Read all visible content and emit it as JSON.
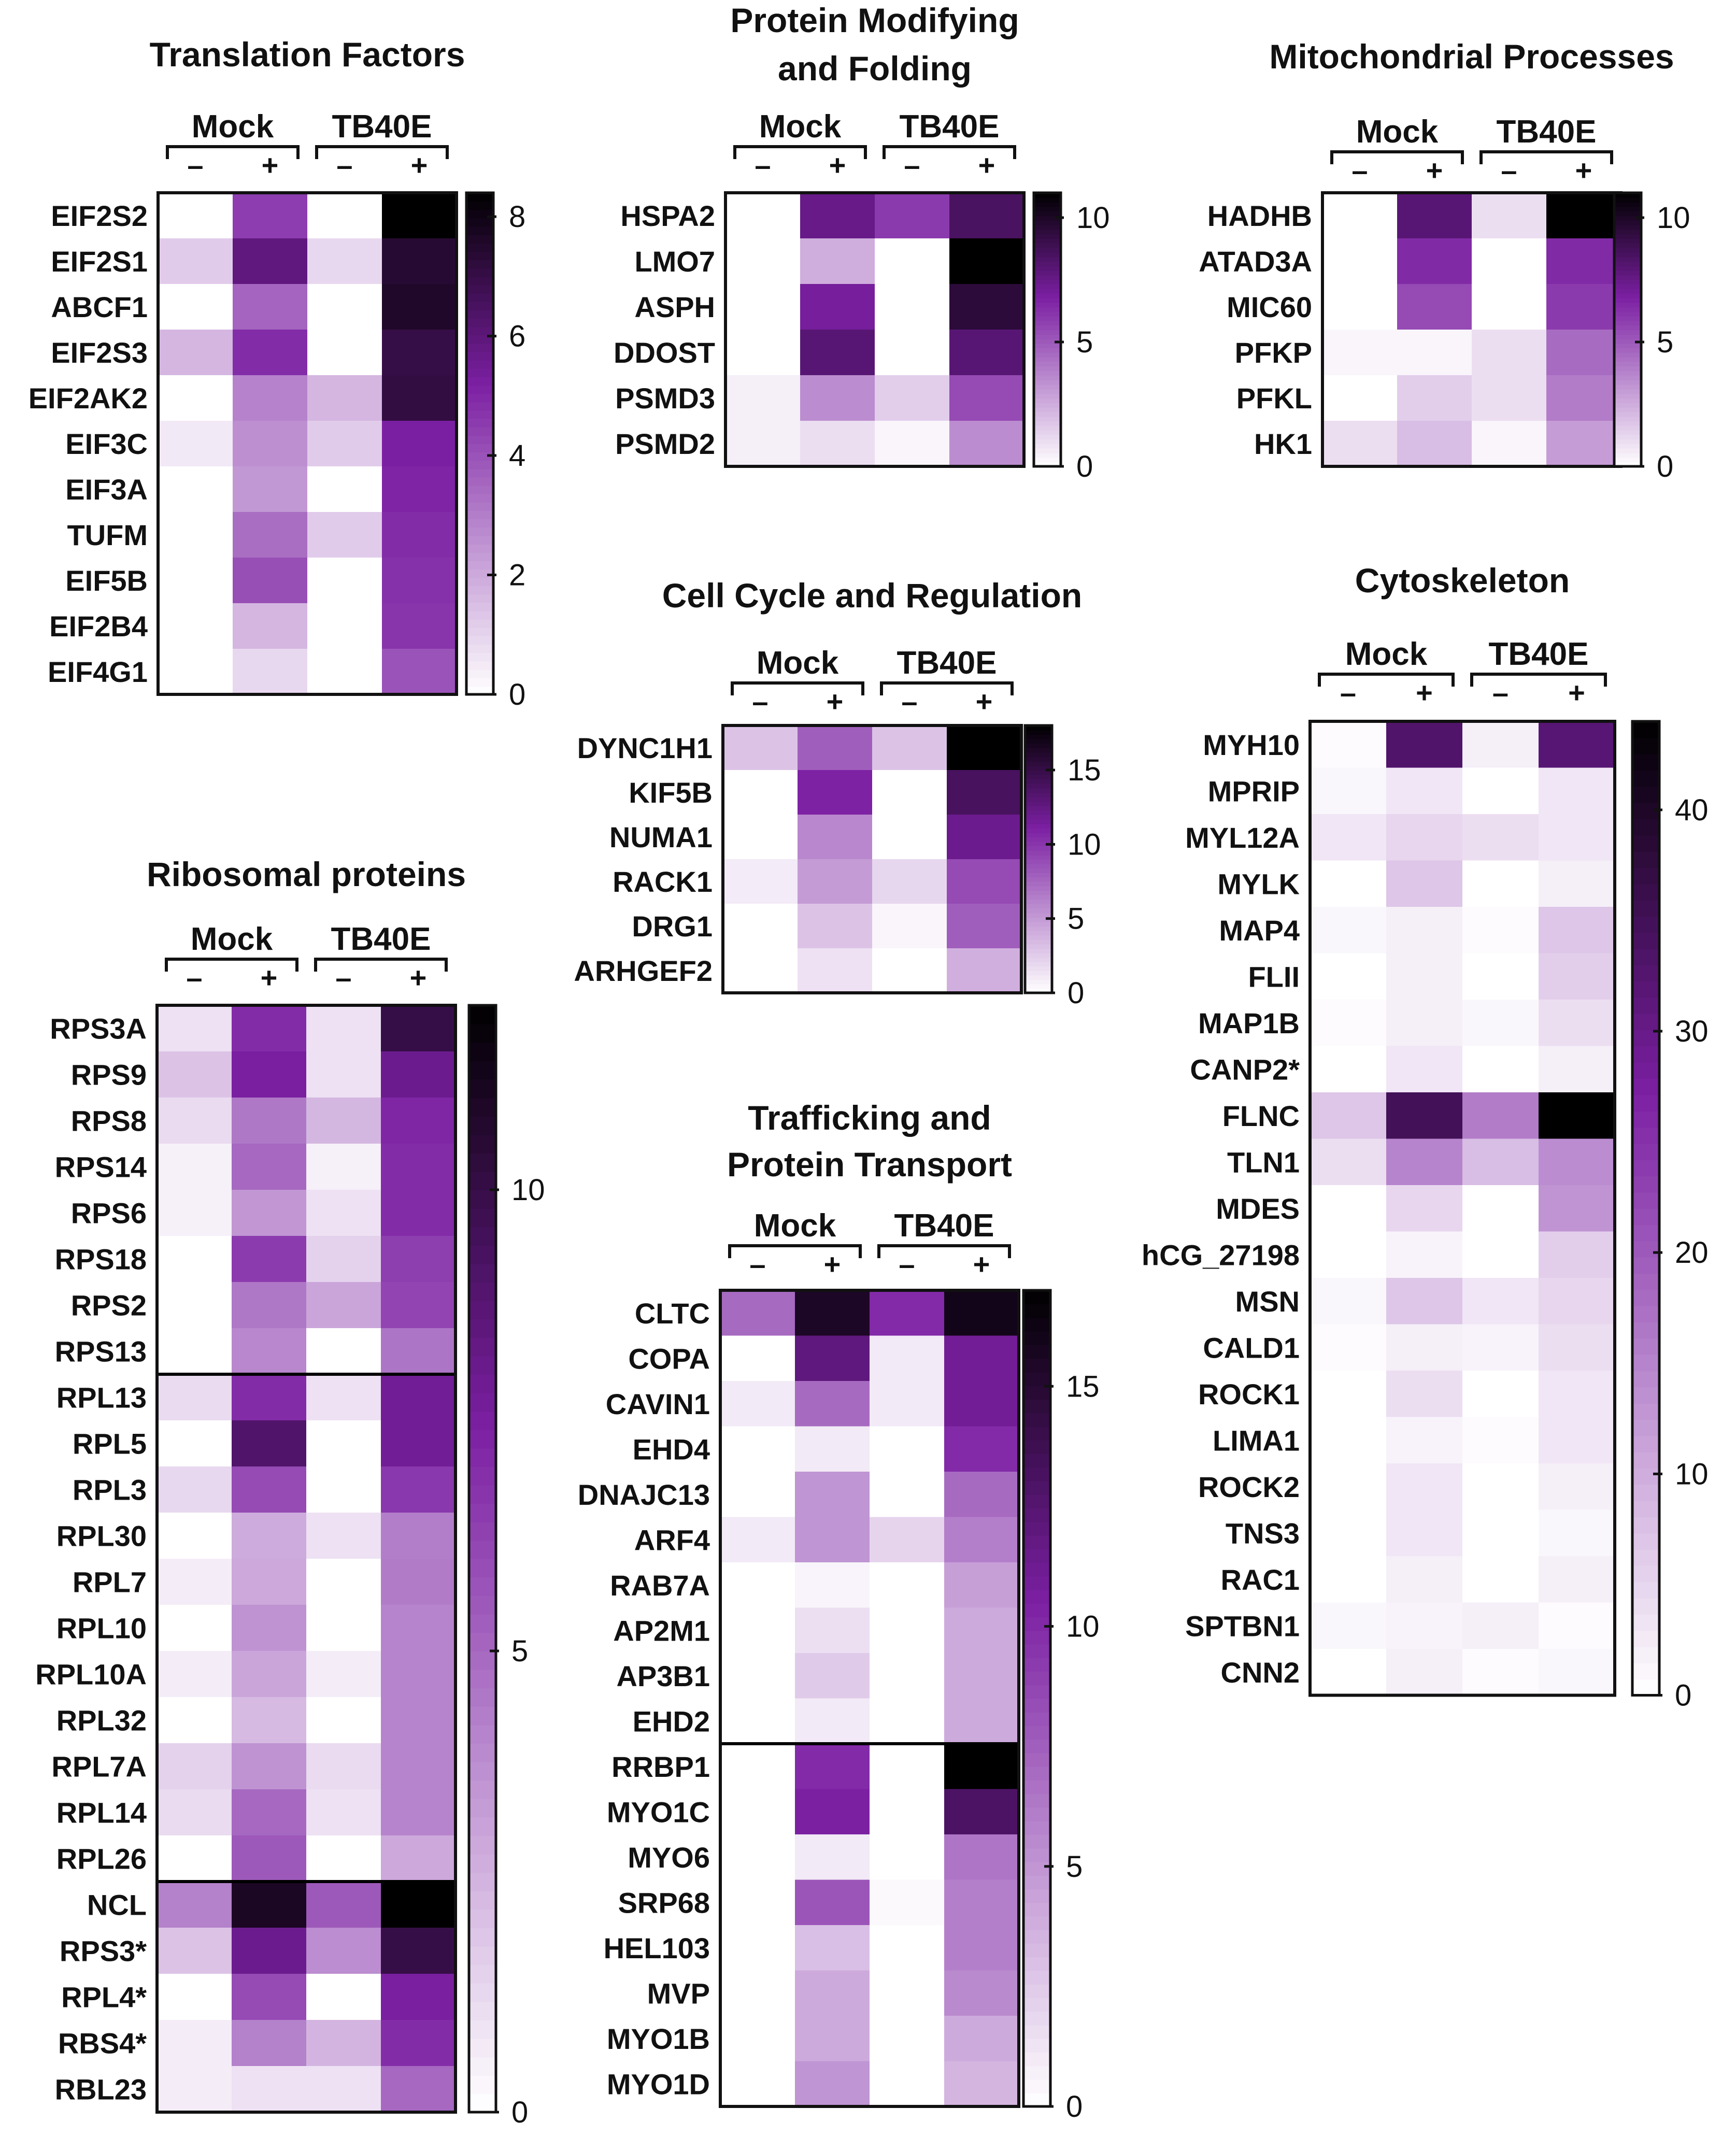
{
  "color_scale": {
    "low": "#ffffff",
    "mid": "#7b1fa2",
    "high": "#000000"
  },
  "group_labels": {
    "mock": "Mock",
    "virus": "TB40E",
    "minus": "–",
    "plus": "+"
  },
  "chart_data": [
    {
      "type": "heatmap",
      "id": "translation",
      "title": [
        "Translation Factors"
      ],
      "columns": [
        "Mock –",
        "Mock +",
        "TB40E –",
        "TB40E +"
      ],
      "rows": [
        "EIF2S2",
        "EIF2S1",
        "ABCF1",
        "EIF2S3",
        "EIF2AK2",
        "EIF3C",
        "EIF3A",
        "TUFM",
        "EIF5B",
        "EIF2B4",
        "EIF4G1"
      ],
      "values": [
        [
          0,
          4.5,
          0,
          8.4
        ],
        [
          1.2,
          5.9,
          0.9,
          7.4
        ],
        [
          0,
          3.6,
          0,
          7.6
        ],
        [
          1.7,
          4.9,
          0,
          7.0
        ],
        [
          0,
          2.9,
          1.7,
          7.1
        ],
        [
          0.5,
          2.6,
          1.2,
          5.2
        ],
        [
          0,
          2.4,
          0,
          5.1
        ],
        [
          0,
          3.4,
          1.2,
          4.9
        ],
        [
          0,
          4.1,
          0,
          4.8
        ],
        [
          0,
          1.7,
          0,
          4.7
        ],
        [
          0,
          0.9,
          0,
          4.0
        ]
      ],
      "colorbar": {
        "min": 0,
        "max": 8.4,
        "ticks": [
          0,
          2,
          4,
          6,
          8
        ]
      },
      "separators": []
    },
    {
      "type": "heatmap",
      "id": "protein-folding",
      "title": [
        "Protein Modifying",
        "and Folding"
      ],
      "columns": [
        "Mock –",
        "Mock +",
        "TB40E –",
        "TB40E +"
      ],
      "rows": [
        "HSPA2",
        "LMO7",
        "ASPH",
        "DDOST",
        "PSMD3",
        "PSMD2"
      ],
      "values": [
        [
          0,
          7.5,
          6.0,
          8.5
        ],
        [
          0,
          2.5,
          0,
          11.0
        ],
        [
          0,
          7.0,
          0,
          9.5
        ],
        [
          0,
          8.0,
          0,
          8.0
        ],
        [
          0.5,
          3.5,
          1.5,
          5.5
        ],
        [
          0.5,
          1.0,
          0.3,
          3.5
        ]
      ],
      "colorbar": {
        "min": 0,
        "max": 11,
        "ticks": [
          0,
          5,
          10
        ]
      },
      "separators": []
    },
    {
      "type": "heatmap",
      "id": "mitochondrial",
      "title": [
        "Mitochondrial Processes"
      ],
      "columns": [
        "Mock –",
        "Mock +",
        "TB40E –",
        "TB40E +"
      ],
      "rows": [
        "HADHB",
        "ATAD3A",
        "MIC60",
        "PFKP",
        "PFKL",
        "HK1"
      ],
      "values": [
        [
          0,
          8.0,
          1.0,
          11.0
        ],
        [
          0,
          6.5,
          0,
          6.5
        ],
        [
          0,
          5.5,
          0,
          6.0
        ],
        [
          0.3,
          0.3,
          1.0,
          4.5
        ],
        [
          0,
          1.5,
          1.0,
          4.0
        ],
        [
          1.0,
          2.0,
          0.3,
          3.0
        ]
      ],
      "colorbar": {
        "min": 0,
        "max": 11,
        "ticks": [
          0,
          5,
          10
        ]
      },
      "separators": []
    },
    {
      "type": "heatmap",
      "id": "cell-cycle",
      "title": [
        "Cell Cycle and Regulation"
      ],
      "columns": [
        "Mock –",
        "Mock +",
        "TB40E –",
        "TB40E +"
      ],
      "rows": [
        "DYNC1H1",
        "KIF5B",
        "NUMA1",
        "RACK1",
        "DRG1",
        "ARHGEF2"
      ],
      "values": [
        [
          3,
          8,
          3,
          18
        ],
        [
          0,
          11,
          0,
          14
        ],
        [
          0,
          6,
          0,
          12
        ],
        [
          1,
          5,
          2,
          9
        ],
        [
          0,
          3,
          0.5,
          8
        ],
        [
          0,
          1.5,
          0,
          4
        ]
      ],
      "colorbar": {
        "min": 0,
        "max": 18,
        "ticks": [
          0,
          5,
          10,
          15
        ]
      },
      "separators": []
    },
    {
      "type": "heatmap",
      "id": "cytoskeleton",
      "title": [
        "Cytoskeleton"
      ],
      "columns": [
        "Mock –",
        "Mock +",
        "TB40E –",
        "TB40E +"
      ],
      "rows": [
        "MYH10",
        "MPRIP",
        "MYL12A",
        "MYLK",
        "MAP4",
        "FLII",
        "MAP1B",
        "CANP2*",
        "FLNC",
        "TLN1",
        "MDES",
        "hCG_27198",
        "MSN",
        "CALD1",
        "ROCK1",
        "LIMA1",
        "ROCK2",
        "TNS3",
        "RAC1",
        "SPTBN1",
        "CNN2"
      ],
      "values": [
        [
          0.5,
          33,
          2,
          32
        ],
        [
          1,
          3,
          0,
          3
        ],
        [
          3,
          5,
          4,
          3
        ],
        [
          0,
          7,
          0,
          2
        ],
        [
          1,
          2,
          0.5,
          7
        ],
        [
          0,
          2,
          0,
          6
        ],
        [
          0.5,
          2,
          1,
          4
        ],
        [
          0,
          3,
          0,
          2
        ],
        [
          7,
          35,
          16,
          44
        ],
        [
          4,
          15,
          8,
          14
        ],
        [
          0,
          5,
          0,
          13
        ],
        [
          0,
          1.5,
          0,
          6
        ],
        [
          1,
          7,
          3,
          5
        ],
        [
          0.5,
          2,
          1.5,
          4
        ],
        [
          0,
          4,
          0,
          3
        ],
        [
          0,
          1.5,
          0.5,
          3
        ],
        [
          0,
          3,
          0,
          2
        ],
        [
          0,
          3,
          0,
          1
        ],
        [
          0,
          2,
          0,
          2
        ],
        [
          1,
          1.5,
          2,
          0.5
        ],
        [
          0,
          2,
          0.5,
          1
        ]
      ],
      "colorbar": {
        "min": 0,
        "max": 44,
        "ticks": [
          0,
          10,
          20,
          30,
          40
        ]
      },
      "separators": []
    },
    {
      "type": "heatmap",
      "id": "ribosomal",
      "title": [
        "Ribosomal proteins"
      ],
      "columns": [
        "Mock –",
        "Mock +",
        "TB40E –",
        "TB40E +"
      ],
      "rows": [
        "RPS3A",
        "RPS9",
        "RPS8",
        "RPS14",
        "RPS6",
        "RPS18",
        "RPS2",
        "RPS13",
        "RPL13",
        "RPL5",
        "RPL3",
        "RPL30",
        "RPL7",
        "RPL10",
        "RPL10A",
        "RPL32",
        "RPL7A",
        "RPL14",
        "RPL26",
        "NCL",
        "RPS3*",
        "RPL4*",
        "RBS4*",
        "RBL23"
      ],
      "values": [
        [
          1,
          7,
          1,
          10
        ],
        [
          2,
          7.5,
          1,
          8
        ],
        [
          1.2,
          4.5,
          2.4,
          7.2
        ],
        [
          0.5,
          5,
          0.5,
          7
        ],
        [
          0.5,
          3.5,
          1,
          7
        ],
        [
          0,
          6.5,
          1.5,
          6.4
        ],
        [
          0,
          4.5,
          3,
          6.2
        ],
        [
          0,
          4,
          0,
          4.6
        ],
        [
          1.2,
          7,
          1,
          7.8
        ],
        [
          0,
          9,
          0,
          7.8
        ],
        [
          1.3,
          6,
          0,
          6.6
        ],
        [
          0,
          2.8,
          1,
          4.3
        ],
        [
          0.6,
          2.9,
          0,
          4.4
        ],
        [
          0,
          3.6,
          0,
          4.1
        ],
        [
          0.6,
          3,
          0.6,
          4.1
        ],
        [
          0,
          2.3,
          0,
          4.1
        ],
        [
          1.5,
          3.6,
          1.2,
          4.1
        ],
        [
          1.2,
          5,
          1,
          4.1
        ],
        [
          0,
          5.5,
          0,
          2.9
        ],
        [
          4.2,
          11,
          5.5,
          12
        ],
        [
          2,
          8,
          3.8,
          10
        ],
        [
          0,
          6,
          0,
          7.5
        ],
        [
          0.6,
          4.2,
          2.5,
          7
        ],
        [
          0.6,
          1,
          1,
          5
        ]
      ],
      "colorbar": {
        "min": 0,
        "max": 12,
        "ticks": [
          0,
          5,
          10
        ]
      },
      "separators": [
        8,
        19
      ]
    },
    {
      "type": "heatmap",
      "id": "trafficking",
      "title": [
        "Trafficking and",
        "Protein Transport"
      ],
      "columns": [
        "Mock –",
        "Mock +",
        "TB40E –",
        "TB40E +"
      ],
      "rows": [
        "CLTC",
        "COPA",
        "CAVIN1",
        "EHD4",
        "DNAJC13",
        "ARF4",
        "RAB7A",
        "AP2M1",
        "AP3B1",
        "EHD2",
        "RRBP1",
        "MYO1C",
        "MYO6",
        "SRP68",
        "HEL103",
        "MVP",
        "MYO1B",
        "MYO1D"
      ],
      "values": [
        [
          7,
          15.5,
          10,
          16
        ],
        [
          0,
          12,
          1,
          11
        ],
        [
          1,
          7,
          1,
          11
        ],
        [
          0,
          1,
          0,
          10
        ],
        [
          0,
          5,
          0,
          7
        ],
        [
          1,
          5,
          2,
          6
        ],
        [
          0,
          0.5,
          0,
          4.5
        ],
        [
          0,
          1.5,
          0,
          4
        ],
        [
          0,
          2.5,
          0,
          4
        ],
        [
          0,
          1,
          0,
          4
        ],
        [
          0,
          10,
          0,
          17
        ],
        [
          0,
          10.5,
          0,
          13
        ],
        [
          0,
          1,
          0,
          6.5
        ],
        [
          0,
          8,
          0.3,
          6
        ],
        [
          0,
          3,
          0,
          6
        ],
        [
          0,
          4,
          0,
          5.5
        ],
        [
          0,
          4,
          0,
          4
        ],
        [
          0,
          5,
          0,
          3.5
        ]
      ],
      "colorbar": {
        "min": 0,
        "max": 17,
        "ticks": [
          0,
          5,
          10,
          15
        ]
      },
      "separators": [
        10
      ]
    }
  ]
}
